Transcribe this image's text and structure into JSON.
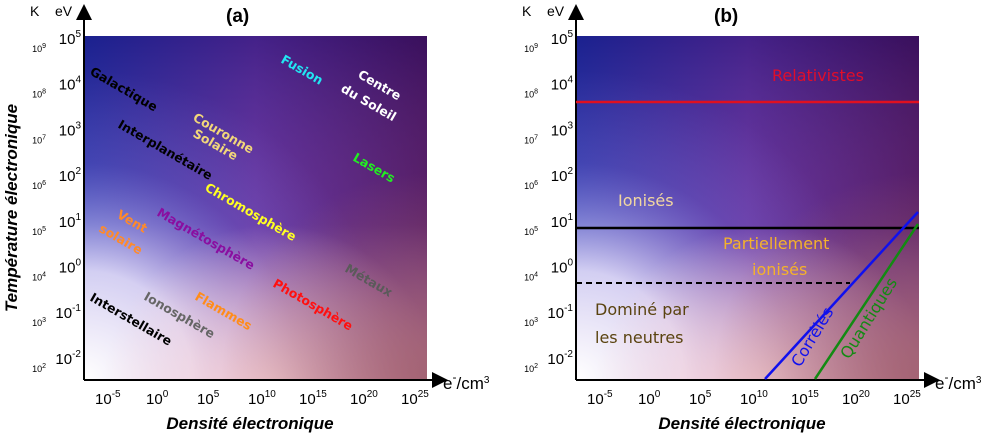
{
  "panel_a": {
    "title": "(a)",
    "regions": [
      {
        "key": "fusion",
        "text": "Fusion",
        "color": "#22e6f2"
      },
      {
        "key": "centre1",
        "text": "Centre",
        "color": "#ffffff"
      },
      {
        "key": "centre2",
        "text": "du Soleil",
        "color": "#ffffff"
      },
      {
        "key": "galactique",
        "text": "Galactique",
        "color": "#000000"
      },
      {
        "key": "couronne1",
        "text": "Couronne",
        "color": "#f2d77a"
      },
      {
        "key": "couronne2",
        "text": "Solaire",
        "color": "#f2d77a"
      },
      {
        "key": "interplanetaire",
        "text": "Interplanétaire",
        "color": "#000000"
      },
      {
        "key": "lasers",
        "text": "Lasers",
        "color": "#22ee22"
      },
      {
        "key": "chromosphere",
        "text": "Chromosphère",
        "color": "#ffff22"
      },
      {
        "key": "vent1",
        "text": "Vent",
        "color": "#ff8a2a"
      },
      {
        "key": "vent2",
        "text": "solaire",
        "color": "#ff8a2a"
      },
      {
        "key": "magnetosphere",
        "text": "Magnétosphère",
        "color": "#8a0ea0"
      },
      {
        "key": "metaux",
        "text": "Métaux",
        "color": "#5a5a5a"
      },
      {
        "key": "photosphere",
        "text": "Photosphère",
        "color": "#ff1010"
      },
      {
        "key": "flammes",
        "text": "Flammes",
        "color": "#ff8c1a"
      },
      {
        "key": "ionosphere",
        "text": "Ionosphère",
        "color": "#666666"
      },
      {
        "key": "interstellaire",
        "text": "Interstellaire",
        "color": "#000000"
      }
    ]
  },
  "panel_b": {
    "title": "(b)",
    "regions": [
      {
        "key": "relativistes",
        "text": "Relativistes",
        "color": "#e00d2a"
      },
      {
        "key": "ionises",
        "text": "Ionisés",
        "color": "#f2d7a0"
      },
      {
        "key": "part1",
        "text": "Partiellement",
        "color": "#f5b22a"
      },
      {
        "key": "part2",
        "text": "ionisés",
        "color": "#f5b22a"
      },
      {
        "key": "domine1",
        "text": "Dominé par",
        "color": "#5a4310"
      },
      {
        "key": "domine2",
        "text": "les neutres",
        "color": "#5a4310"
      },
      {
        "key": "correles",
        "text": "Corrélés",
        "color": "#1010ee"
      },
      {
        "key": "quantiques",
        "text": "Quantiques",
        "color": "#138a13"
      }
    ],
    "line_colors": {
      "relativistic": "#e01020",
      "ionized": "#000000",
      "dashed": "#000000",
      "correlated": "#1010ee",
      "quantum": "#138a13"
    }
  },
  "axes": {
    "y_title": "Température électronique",
    "x_title": "Densité électronique",
    "y_unit_ev": "eV",
    "y_unit_k": "K",
    "x_unit_base": "e",
    "x_unit_sup": "-",
    "x_unit_rest": "/cm",
    "x_unit_exp": "3",
    "ev_ticks": [
      {
        "b": "10",
        "e": "5"
      },
      {
        "b": "10",
        "e": "4"
      },
      {
        "b": "10",
        "e": "3"
      },
      {
        "b": "10",
        "e": "2"
      },
      {
        "b": "10",
        "e": "1"
      },
      {
        "b": "10",
        "e": "0"
      },
      {
        "b": "10",
        "e": "-1"
      },
      {
        "b": "10",
        "e": "-2"
      }
    ],
    "k_ticks": [
      {
        "b": "10",
        "e": "9"
      },
      {
        "b": "10",
        "e": "8"
      },
      {
        "b": "10",
        "e": "7"
      },
      {
        "b": "10",
        "e": "6"
      },
      {
        "b": "10",
        "e": "5"
      },
      {
        "b": "10",
        "e": "4"
      },
      {
        "b": "10",
        "e": "3"
      },
      {
        "b": "10",
        "e": "2"
      }
    ],
    "x_ticks": [
      {
        "b": "10",
        "e": "-5"
      },
      {
        "b": "10",
        "e": "0"
      },
      {
        "b": "10",
        "e": "5"
      },
      {
        "b": "10",
        "e": "10"
      },
      {
        "b": "10",
        "e": "15"
      },
      {
        "b": "10",
        "e": "20"
      },
      {
        "b": "10",
        "e": "25"
      }
    ]
  }
}
